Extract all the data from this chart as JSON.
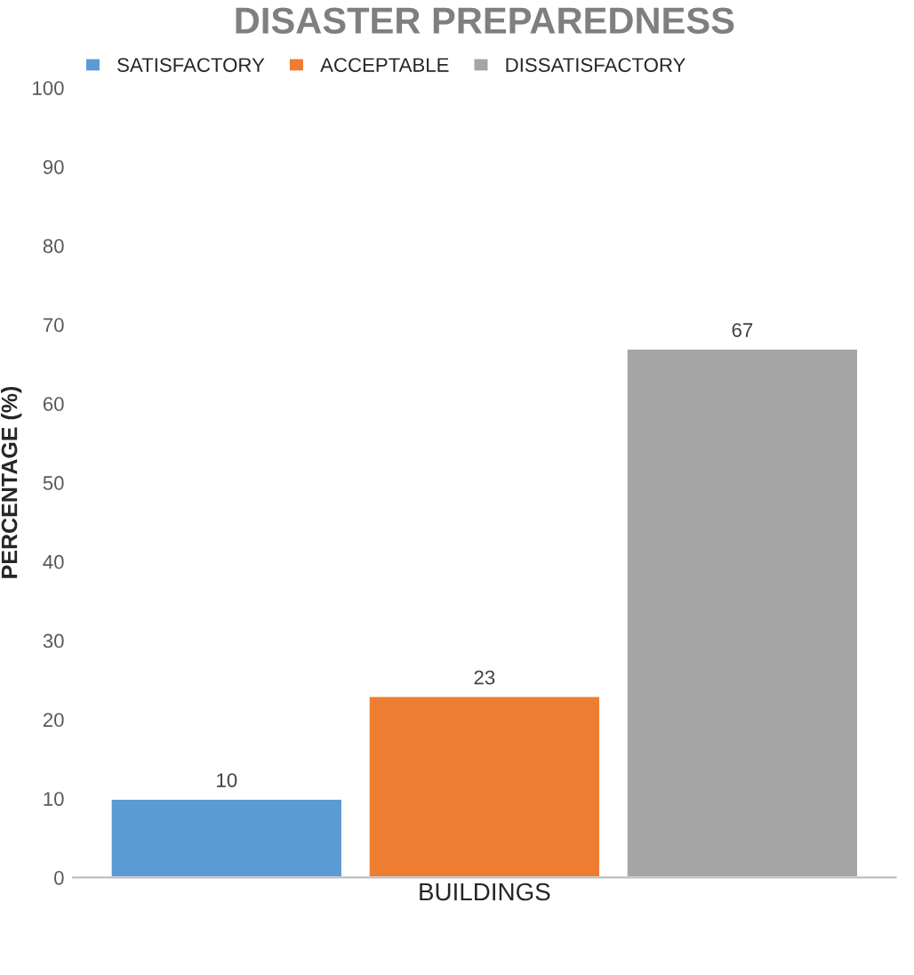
{
  "chart_data": {
    "type": "bar",
    "title": "DISASTER PREPAREDNESS",
    "ylabel": "PERCENTAGE (%)",
    "categories": [
      "BUILDINGS"
    ],
    "series": [
      {
        "name": "SATISFACTORY",
        "color": "#5b9bd5",
        "values": [
          10
        ]
      },
      {
        "name": "ACCEPTABLE",
        "color": "#ed7d31",
        "values": [
          23
        ]
      },
      {
        "name": "DISSATISFACTORY",
        "color": "#a5a5a5",
        "values": [
          67
        ]
      }
    ],
    "ylim": [
      0,
      100
    ],
    "yticks": [
      0,
      10,
      20,
      30,
      40,
      50,
      60,
      70,
      80,
      90,
      100
    ],
    "grid": false,
    "legend": "top left",
    "data_labels": true
  }
}
